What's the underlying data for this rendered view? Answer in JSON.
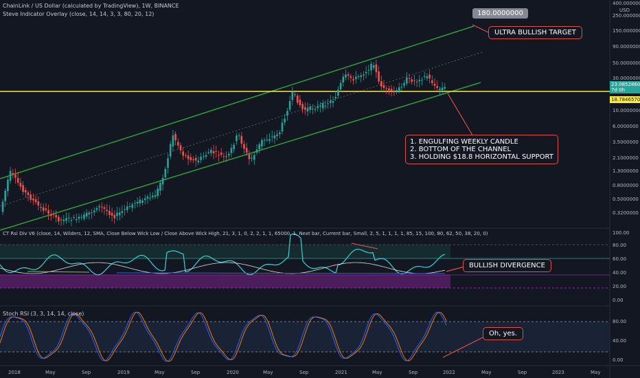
{
  "header": {
    "title": "ChainLink / US Dollar (calculated by TradingView), 1W, BINANCE",
    "indicator": "Steve Indicator Overlay (close, 14, 14, 3, 3, 80, 20, 12)"
  },
  "price_axis": {
    "currency": "USD",
    "ticks": [
      "400.0000000",
      "250.0000000",
      "150.0000000",
      "90.0000000",
      "50.0000000",
      "30.0000000",
      "10.0000000",
      "6.0000000",
      "3.5000000",
      "2.1000000",
      "1.3000000",
      "0.8000000",
      "0.5000000",
      "0.3200000"
    ],
    "target_tag": "180.0000000",
    "current_price": "23.0852860",
    "countdown": "7d 0h",
    "support_tag": "18.7846570"
  },
  "rsi_panel": {
    "label": "CT Rsi Div V6 (close, 14, Wilders, 12, SMA, Close Below Wick Low / Close Above Wick High, 21, 3, 1, 0, 2, 2, 1, 1, 65000, 1, Next bar, Current bar, Small, 2, 5, 1, 1, 1, 1, 85, 15, 100, 80, 62, 50, 38, 20, 0)",
    "ticks": [
      "100.00",
      "80.00",
      "60.00",
      "40.00",
      "20.00",
      "0.00"
    ]
  },
  "stoch_panel": {
    "label": "Stoch RSI (3, 3, 14, 14, close)",
    "ticks": [
      "80.00",
      "40.00",
      "0.00"
    ]
  },
  "time_axis": [
    "2018",
    "May",
    "Sep",
    "2019",
    "May",
    "Sep",
    "2020",
    "May",
    "Sep",
    "2021",
    "May",
    "Sep",
    "2022",
    "May",
    "Sep",
    "2023",
    "May"
  ],
  "annotations": {
    "target": "ULTRA BULLISH TARGET",
    "reasons": [
      "1. ENGULFING WEEKLY CANDLE",
      "2. BOTTOM OF THE CHANNEL",
      "3. HOLDING $18.8 HORIZONTAL SUPPORT"
    ],
    "divergence": "BULLISH DIVERGENCE",
    "stoch_note": "Oh, yes."
  },
  "colors": {
    "background": "#131722",
    "channel": "#2e9e3a",
    "support_line": "#ffeb3b",
    "bull_candle": "#26a69a",
    "bear_candle": "#ef5350",
    "annotation_border": "#e0504a",
    "rsi_line": "#33d6d6",
    "stoch_k": "#2962ff",
    "stoch_d": "#f57c00"
  }
}
